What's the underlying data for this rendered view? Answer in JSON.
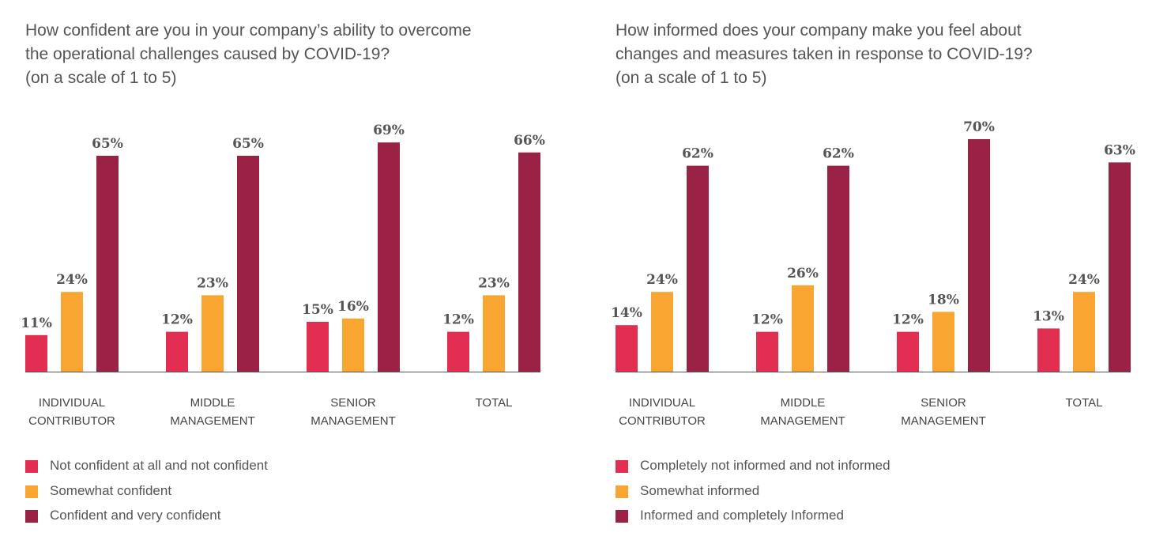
{
  "colors": {
    "low": "#E22E50",
    "mid": "#F8A531",
    "high": "#9A2245",
    "axis": "#555555"
  },
  "chart_data": [
    {
      "type": "bar",
      "title_lines": [
        "How confident are you in your company’s ability to overcome",
        "the operational challenges caused by COVID-19?",
        "(on a scale of 1 to 5)"
      ],
      "categories": [
        [
          "INDIVIDUAL",
          "CONTRIBUTOR"
        ],
        [
          "MIDDLE",
          "MANAGEMENT"
        ],
        [
          "SENIOR",
          "MANAGEMENT"
        ],
        [
          "TOTAL"
        ]
      ],
      "series": [
        {
          "name": "Not confident at all and not confident",
          "values": [
            11,
            12,
            15,
            12
          ],
          "color": "#E22E50"
        },
        {
          "name": "Somewhat confident",
          "values": [
            24,
            23,
            16,
            23
          ],
          "color": "#F8A531"
        },
        {
          "name": "Confident and very confident",
          "values": [
            65,
            65,
            69,
            66
          ],
          "color": "#9A2245"
        }
      ],
      "value_suffix": "%",
      "ylim": [
        0,
        100
      ],
      "grid": false,
      "legend_position": "bottom-left"
    },
    {
      "type": "bar",
      "title_lines": [
        "How informed does your company make you feel about",
        "changes and measures taken in response to COVID-19?",
        "(on a scale of 1 to 5)"
      ],
      "categories": [
        [
          "INDIVIDUAL",
          "CONTRIBUTOR"
        ],
        [
          "MIDDLE",
          "MANAGEMENT"
        ],
        [
          "SENIOR",
          "MANAGEMENT"
        ],
        [
          "TOTAL"
        ]
      ],
      "series": [
        {
          "name": "Completely not informed and not informed",
          "values": [
            14,
            12,
            12,
            13
          ],
          "color": "#E22E50"
        },
        {
          "name": "Somewhat informed",
          "values": [
            24,
            26,
            18,
            24
          ],
          "color": "#F8A531"
        },
        {
          "name": "Informed and completely Informed",
          "values": [
            62,
            62,
            70,
            63
          ],
          "color": "#9A2245"
        }
      ],
      "value_suffix": "%",
      "ylim": [
        0,
        100
      ],
      "grid": false,
      "legend_position": "bottom-left"
    }
  ]
}
